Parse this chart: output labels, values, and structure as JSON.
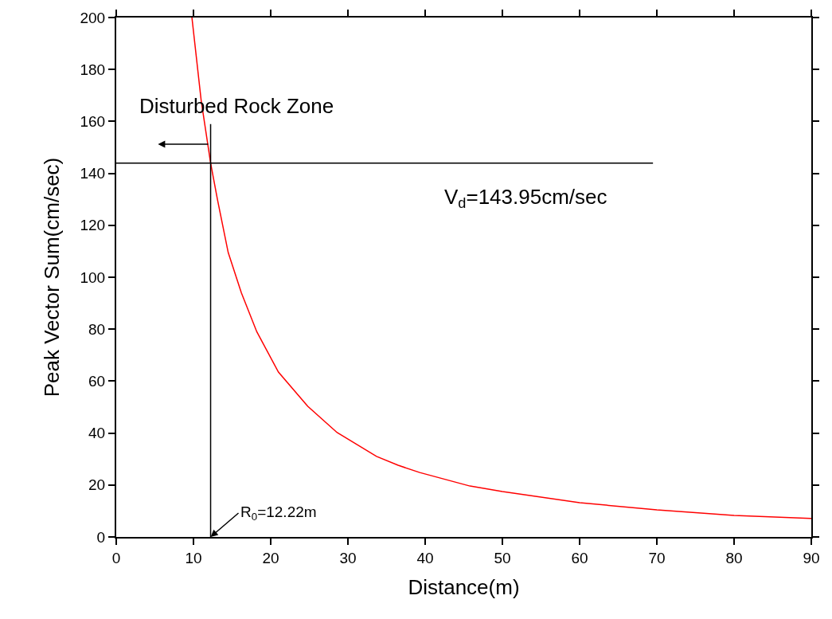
{
  "chart_data": {
    "type": "line",
    "xlabel": "Distance(m)",
    "ylabel": "Peak Vector Sum(cm/sec)",
    "xlim": [
      0,
      90
    ],
    "xticks": [
      0,
      10,
      20,
      30,
      40,
      50,
      60,
      70,
      80,
      90
    ],
    "ylim": [
      0,
      200
    ],
    "yticks": [
      0,
      20,
      40,
      60,
      80,
      100,
      120,
      140,
      160,
      180,
      200
    ],
    "grid": false,
    "marker": "none",
    "line_style": "solid",
    "series": [
      {
        "color": "#ff0000",
        "x": [
          9.8,
          11,
          12.22,
          13.1,
          14.5,
          16.2,
          18.2,
          21,
          24.8,
          28.6,
          33.7,
          36.5,
          39.3,
          45.8,
          50,
          60,
          70,
          80,
          90
        ],
        "values": [
          200,
          168,
          143.95,
          130,
          109.5,
          94,
          79,
          63.5,
          50.3,
          40.2,
          31,
          27.6,
          24.8,
          19.6,
          17.5,
          13.2,
          10.4,
          8.3,
          7.1
        ]
      },
      {
        "color": "#000000",
        "x": [
          0,
          69.5
        ],
        "values": [
          143.95,
          143.95
        ]
      },
      {
        "color": "#000000",
        "x": [
          12.22,
          12.22
        ],
        "values": [
          0,
          159
        ]
      }
    ],
    "annotations": [
      "Disturbed Rock Zone",
      "V$_{d}$=143.95cm/sec",
      {
        "text": "R$_{0}$=12.22m",
        "x": 12.22,
        "y": 0
      }
    ]
  }
}
